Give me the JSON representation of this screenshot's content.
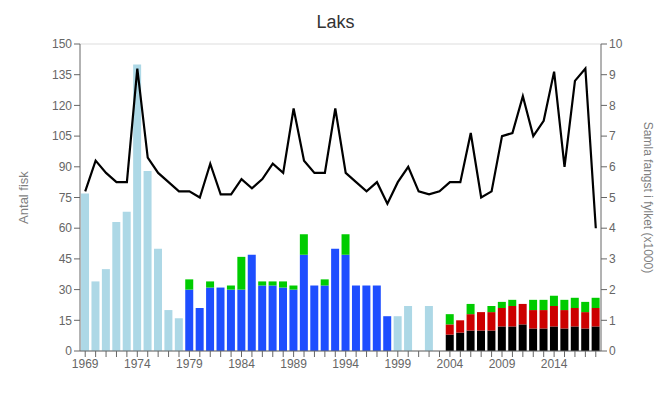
{
  "chart_data": {
    "type": "bar",
    "title": "Laks",
    "y_label": "Antal fisk",
    "y2_label": "Samla fangst i fylket (x1000)",
    "stacked": true,
    "grid": true,
    "ylim": [
      0,
      150
    ],
    "yticks": [
      0,
      15,
      30,
      45,
      60,
      75,
      90,
      105,
      120,
      135,
      150
    ],
    "y2lim": [
      0,
      10
    ],
    "y2ticks": [
      0,
      1,
      2,
      3,
      4,
      5,
      6,
      7,
      8,
      9,
      10
    ],
    "categories": [
      "1969",
      null,
      null,
      null,
      null,
      "1974",
      null,
      null,
      null,
      null,
      "1979",
      null,
      null,
      null,
      null,
      "1984",
      null,
      null,
      null,
      null,
      "1989",
      null,
      null,
      null,
      null,
      "1994",
      null,
      null,
      null,
      null,
      "1999",
      null,
      null,
      null,
      null,
      "2004",
      null,
      null,
      null,
      null,
      "2009",
      null,
      null,
      null,
      null,
      "2014",
      null,
      null,
      null,
      null
    ],
    "series": [
      {
        "type": "bar",
        "color": "#add8e6",
        "values": [
          77,
          34,
          40,
          63,
          68,
          140,
          88,
          50,
          20,
          16,
          0,
          0,
          0,
          0,
          0,
          0,
          0,
          0,
          0,
          0,
          0,
          0,
          0,
          0,
          0,
          0,
          0,
          0,
          0,
          0,
          17,
          22,
          0,
          22,
          0,
          0,
          0,
          0,
          0,
          0,
          0,
          0,
          0,
          0,
          0,
          0,
          0,
          0,
          0,
          0
        ]
      },
      {
        "type": "bar",
        "color": "#1e4eff",
        "values": [
          0,
          0,
          0,
          0,
          0,
          0,
          0,
          0,
          0,
          0,
          30,
          21,
          31,
          31,
          30,
          30,
          47,
          32,
          32,
          31,
          30,
          47,
          32,
          32,
          50,
          47,
          32,
          32,
          32,
          17,
          0,
          0,
          0,
          0,
          0,
          0,
          0,
          0,
          0,
          0,
          0,
          0,
          0,
          0,
          0,
          0,
          0,
          0,
          0,
          0
        ]
      },
      {
        "type": "bar",
        "color": "#000000",
        "values": [
          0,
          0,
          0,
          0,
          0,
          0,
          0,
          0,
          0,
          0,
          0,
          0,
          0,
          0,
          0,
          0,
          0,
          0,
          0,
          0,
          0,
          0,
          0,
          0,
          0,
          0,
          0,
          0,
          0,
          0,
          0,
          0,
          0,
          0,
          0,
          8,
          9,
          10,
          10,
          10,
          12,
          12,
          13,
          11,
          11,
          12,
          11,
          12,
          11,
          12
        ]
      },
      {
        "type": "bar",
        "color": "#cc0000",
        "values": [
          0,
          0,
          0,
          0,
          0,
          0,
          0,
          0,
          0,
          0,
          0,
          0,
          0,
          0,
          0,
          0,
          0,
          0,
          0,
          0,
          0,
          0,
          0,
          0,
          0,
          0,
          0,
          0,
          0,
          0,
          0,
          0,
          0,
          0,
          0,
          5,
          6,
          8,
          9,
          9,
          9,
          10,
          10,
          9,
          9,
          10,
          9,
          9,
          8,
          9
        ]
      },
      {
        "type": "bar",
        "color": "#00cc00",
        "values": [
          0,
          0,
          0,
          0,
          0,
          0,
          0,
          0,
          0,
          0,
          5,
          0,
          3,
          0,
          2,
          16,
          0,
          2,
          2,
          3,
          2,
          10,
          0,
          3,
          0,
          10,
          0,
          0,
          0,
          0,
          0,
          0,
          0,
          0,
          0,
          5,
          0,
          5,
          0,
          3,
          3,
          3,
          0,
          5,
          5,
          5,
          5,
          5,
          5,
          5
        ]
      },
      {
        "type": "line",
        "axis": "y2",
        "color": "#000000",
        "values": [
          5.2,
          6.2,
          5.8,
          5.5,
          5.5,
          9.2,
          6.3,
          5.8,
          5.5,
          5.2,
          5.2,
          5.0,
          6.1,
          5.1,
          5.1,
          5.6,
          5.3,
          5.6,
          6.1,
          5.8,
          7.9,
          6.2,
          5.8,
          5.8,
          7.9,
          5.8,
          5.5,
          5.2,
          5.5,
          4.8,
          5.5,
          6.0,
          5.2,
          5.1,
          5.2,
          5.5,
          5.5,
          7.1,
          5.0,
          5.2,
          7.0,
          7.1,
          8.3,
          7.0,
          7.5,
          9.1,
          6.0,
          8.8,
          9.2,
          4.0
        ]
      }
    ]
  }
}
